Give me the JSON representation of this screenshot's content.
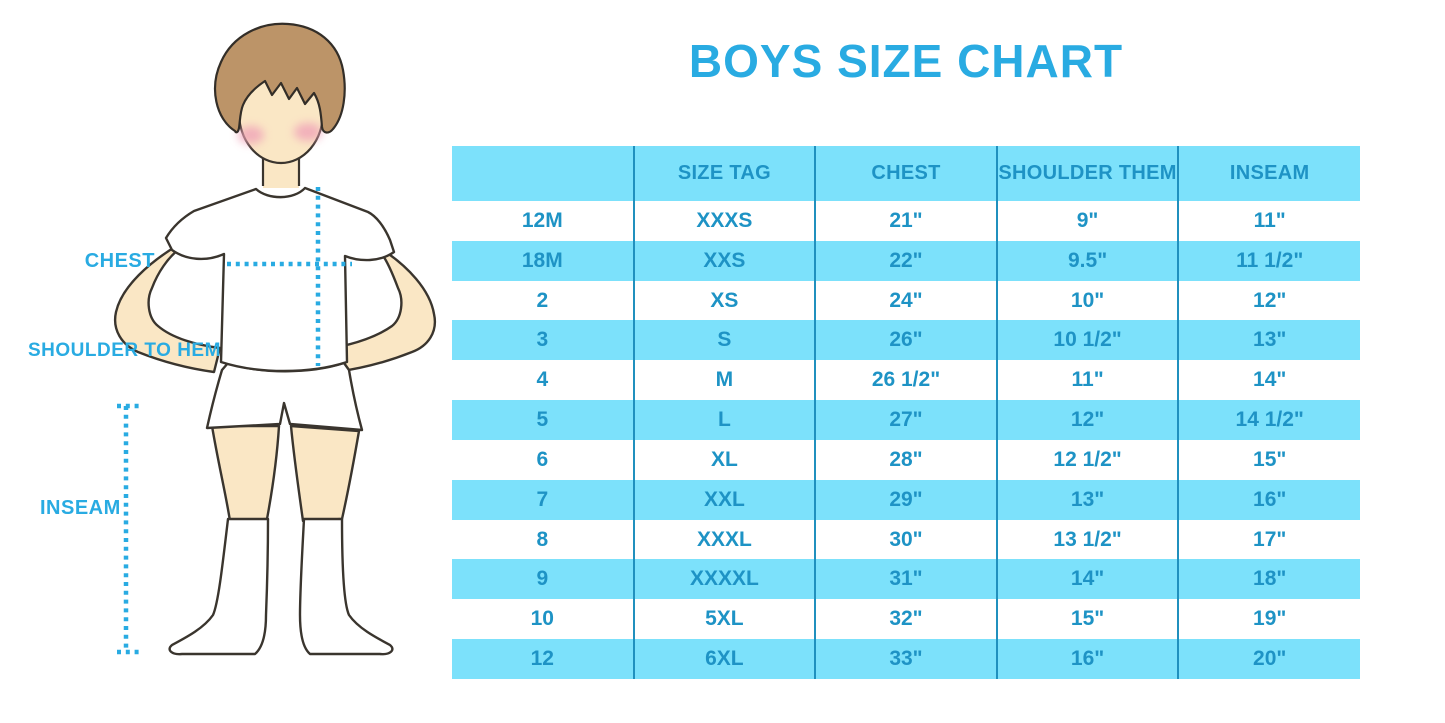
{
  "title": "BOYS SIZE CHART",
  "figure_labels": {
    "chest": "CHEST",
    "shoulder_to_hem": "SHOULDER TO HEM",
    "inseam": "INSEAM"
  },
  "colors": {
    "accent_blue": "#29ABE2",
    "table_text_blue": "#1E93C5",
    "row_light_blue": "#7CE1FB",
    "column_divider_blue": "#2090BE",
    "hair_brown": "#BC9468",
    "skin_tone": "#FAE7C5",
    "cheek_pink": "#F0A3B8"
  },
  "chart_data": {
    "type": "table",
    "title": "BOYS SIZE CHART",
    "columns": [
      "",
      "SIZE TAG",
      "CHEST",
      "SHOULDER THEM",
      "INSEAM"
    ],
    "rows": [
      [
        "12M",
        "XXXS",
        "21\"",
        "9\"",
        "11\""
      ],
      [
        "18M",
        "XXS",
        "22\"",
        "9.5\"",
        "11 1/2\""
      ],
      [
        "2",
        "XS",
        "24\"",
        "10\"",
        "12\""
      ],
      [
        "3",
        "S",
        "26\"",
        "10 1/2\"",
        "13\""
      ],
      [
        "4",
        "M",
        "26 1/2\"",
        "11\"",
        "14\""
      ],
      [
        "5",
        "L",
        "27\"",
        "12\"",
        "14 1/2\""
      ],
      [
        "6",
        "XL",
        "28\"",
        "12 1/2\"",
        "15\""
      ],
      [
        "7",
        "XXL",
        "29\"",
        "13\"",
        "16\""
      ],
      [
        "8",
        "XXXL",
        "30\"",
        "13 1/2\"",
        "17\""
      ],
      [
        "9",
        "XXXXL",
        "31\"",
        "14\"",
        "18\""
      ],
      [
        "10",
        "5XL",
        "32\"",
        "15\"",
        "19\""
      ],
      [
        "12",
        "6XL",
        "33\"",
        "16\"",
        "20\""
      ]
    ]
  }
}
